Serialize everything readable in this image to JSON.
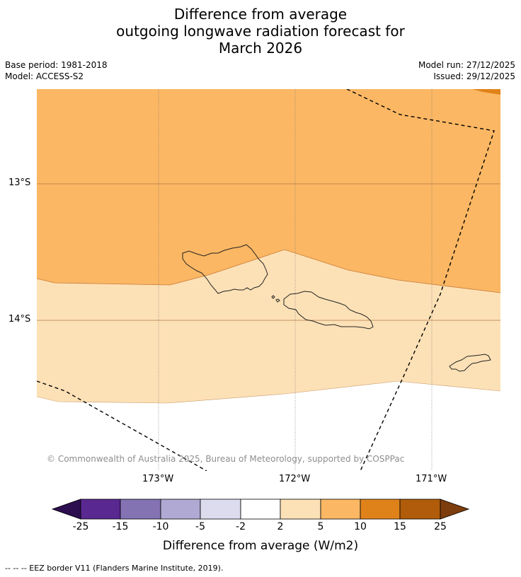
{
  "title": {
    "line1": "Difference from average",
    "line2": "outgoing longwave radiation forecast for",
    "line3": "March 2026"
  },
  "meta": {
    "base_period": "Base period: 1981-2018",
    "model": "Model: ACCESS-S2",
    "model_run": "Model run: 27/12/2025",
    "issued": "Issued: 29/12/2025"
  },
  "map": {
    "lat_labels": [
      "13°S",
      "14°S"
    ],
    "lon_labels": [
      "173°W",
      "172°W",
      "171°W"
    ],
    "copyright": "© Commonwealth of Australia 2025, Bureau of Meteorology, supported by COSPPac",
    "regions": {
      "upper_band": "5 to 10 W/m2",
      "middle_band": "2 to 5 W/m2",
      "lower_band": "-2 to 2 W/m2",
      "corner_patch": "10 to 15 W/m2"
    },
    "features": [
      "Savai'i",
      "Upolu",
      "Tutuila",
      "EEZ border"
    ]
  },
  "colorbar": {
    "ticks": [
      "-25",
      "-15",
      "-10",
      "-5",
      "-2",
      "2",
      "5",
      "10",
      "15",
      "25"
    ],
    "colors": [
      "#2d0e4e",
      "#5a2891",
      "#8473b3",
      "#b0a9d3",
      "#dcdcee",
      "#ffffff",
      "#fde1b6",
      "#fbb763",
      "#e0821a",
      "#b15c0a",
      "#7e3d0c"
    ],
    "label": "Difference from average (W/m2)"
  },
  "footnote": "--  --  -- EEZ border V11 (Flanders Marine Institute, 2019)."
}
